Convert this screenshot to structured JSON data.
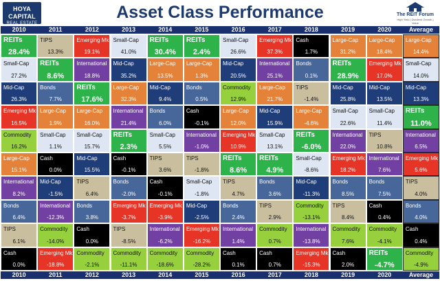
{
  "branding": {
    "left_logo_line1": "HOYA CAPITAL",
    "left_logo_line2": "REAL ESTATE",
    "right_logo_line1": "The REIT Forum",
    "right_logo_line2": "High Yield | Dividend Growth | Value"
  },
  "colors": {
    "REITs": "#2db34a",
    "Large-Cap": "#e4823a",
    "Mid-Cap": "#1f3d78",
    "Small-Cap": "#dde6f2",
    "International": "#7240a2",
    "Emerging Mk": "#e63427",
    "Bonds": "#47679a",
    "TIPS": "#c9bf9e",
    "Cash": "#000000",
    "Commodity": "#96d13d"
  },
  "chart_data": {
    "type": "table",
    "title": "Asset Class Performance",
    "columns": [
      "2010",
      "2011",
      "2012",
      "2013",
      "2014",
      "2015",
      "2016",
      "2017",
      "2018",
      "2019",
      "2020",
      "Average"
    ],
    "rows": [
      [
        [
          "REITs",
          "28.4%"
        ],
        [
          "TIPS",
          "13.3%"
        ],
        [
          "Emerging Mk",
          "19.1%"
        ],
        [
          "Small-Cap",
          "41.0%"
        ],
        [
          "REITs",
          "30.4%"
        ],
        [
          "REITs",
          "2.4%"
        ],
        [
          "Small-Cap",
          "26.6%"
        ],
        [
          "Emerging Mk",
          "37.3%"
        ],
        [
          "Cash",
          "1.7%"
        ],
        [
          "Large-Cap",
          "31.2%"
        ],
        [
          "Large-Cap",
          "18.4%"
        ],
        [
          "Large-Cap",
          "14.4%"
        ]
      ],
      [
        [
          "Small-Cap",
          "27.2%"
        ],
        [
          "REITs",
          "8.6%"
        ],
        [
          "International",
          "18.8%"
        ],
        [
          "Mid-Cap",
          "35.2%"
        ],
        [
          "Large-Cap",
          "13.5%"
        ],
        [
          "Large-Cap",
          "1.3%"
        ],
        [
          "Mid-Cap",
          "20.5%"
        ],
        [
          "International",
          "25.1%"
        ],
        [
          "Bonds",
          "0.1%"
        ],
        [
          "REITs",
          "28.9%"
        ],
        [
          "Emerging Mk",
          "17.0%"
        ],
        [
          "Small-Cap",
          "14.0%"
        ]
      ],
      [
        [
          "Mid-Cap",
          "26.3%"
        ],
        [
          "Bonds",
          "7.7%"
        ],
        [
          "REITs",
          "17.6%"
        ],
        [
          "Large-Cap",
          "32.3%"
        ],
        [
          "Mid-Cap",
          "9.4%"
        ],
        [
          "Bonds",
          "0.5%"
        ],
        [
          "Commodity",
          "12.9%"
        ],
        [
          "Large-Cap",
          "21.7%"
        ],
        [
          "TIPS",
          "-1.4%"
        ],
        [
          "Mid-Cap",
          "25.8%"
        ],
        [
          "Mid-Cap",
          "13.5%"
        ],
        [
          "Mid-Cap",
          "13.3%"
        ]
      ],
      [
        [
          "Emerging Mk",
          "16.5%"
        ],
        [
          "Large-Cap",
          "1.9%"
        ],
        [
          "Large-Cap",
          "16.0%"
        ],
        [
          "International",
          "21.4%"
        ],
        [
          "Bonds",
          "6.0%"
        ],
        [
          "Cash",
          "-0.1%"
        ],
        [
          "Large-Cap",
          "12.0%"
        ],
        [
          "Mid-Cap",
          "15.9%"
        ],
        [
          "Large-Cap",
          "-4.6%"
        ],
        [
          "Small-Cap",
          "22.6%"
        ],
        [
          "Small-Cap",
          "11.4%"
        ],
        [
          "REITs",
          "11.0%"
        ]
      ],
      [
        [
          "Commodity",
          "16.2%"
        ],
        [
          "Small-Cap",
          "1.1%"
        ],
        [
          "Small-Cap",
          "15.7%"
        ],
        [
          "REITs",
          "2.3%"
        ],
        [
          "Small-Cap",
          "5.5%"
        ],
        [
          "International",
          "-1.0%"
        ],
        [
          "Emerging Mk",
          "10.9%"
        ],
        [
          "Small-Cap",
          "13.1%"
        ],
        [
          "REITs",
          "-6.0%"
        ],
        [
          "International",
          "22.0%"
        ],
        [
          "TIPS",
          "10.8%"
        ],
        [
          "International",
          "6.5%"
        ]
      ],
      [
        [
          "Large-Cap",
          "15.1%"
        ],
        [
          "Cash",
          "0.0%"
        ],
        [
          "Mid-Cap",
          "15.5%"
        ],
        [
          "Cash",
          "-0.1%"
        ],
        [
          "TIPS",
          "3.6%"
        ],
        [
          "TIPS",
          "-1.8%"
        ],
        [
          "REITs",
          "8.6%"
        ],
        [
          "REITs",
          "4.9%"
        ],
        [
          "Small-Cap",
          "-8.6%"
        ],
        [
          "Emerging Mk",
          "18.2%"
        ],
        [
          "International",
          "7.6%"
        ],
        [
          "Emerging Mk",
          "5.6%"
        ]
      ],
      [
        [
          "International",
          "8.2%"
        ],
        [
          "Mid-Cap",
          "-1.5%"
        ],
        [
          "TIPS",
          "6.4%"
        ],
        [
          "Bonds",
          "-2.0%"
        ],
        [
          "Cash",
          "-0.1%"
        ],
        [
          "Small-Cap",
          "-1.8%"
        ],
        [
          "TIPS",
          "4.7%"
        ],
        [
          "Bonds",
          "3.6%"
        ],
        [
          "Mid-Cap",
          "-11.3%"
        ],
        [
          "Bonds",
          "8.5%"
        ],
        [
          "Bonds",
          "7.5%"
        ],
        [
          "TIPS",
          "4.0%"
        ]
      ],
      [
        [
          "Bonds",
          "6.4%"
        ],
        [
          "International",
          "-12.3%"
        ],
        [
          "Bonds",
          "3.8%"
        ],
        [
          "Emerging Mk",
          "-3.7%"
        ],
        [
          "Emerging Mk",
          "-3.9%"
        ],
        [
          "Mid-Cap",
          "-2.5%"
        ],
        [
          "Bonds",
          "2.4%"
        ],
        [
          "TIPS",
          "2.9%"
        ],
        [
          "Commodity",
          "-13.1%"
        ],
        [
          "TIPS",
          "8.4%"
        ],
        [
          "Cash",
          "0.4%"
        ],
        [
          "Bonds",
          "4.0%"
        ]
      ],
      [
        [
          "TIPS",
          "6.1%"
        ],
        [
          "Commodity",
          "-14.0%"
        ],
        [
          "Cash",
          "0.0%"
        ],
        [
          "TIPS",
          "-8.5%"
        ],
        [
          "International",
          "-6.2%"
        ],
        [
          "Emerging Mk",
          "-16.2%"
        ],
        [
          "International",
          "1.4%"
        ],
        [
          "Commodity",
          "0.7%"
        ],
        [
          "International",
          "-13.8%"
        ],
        [
          "Commodity",
          "7.6%"
        ],
        [
          "Commodity",
          "-4.1%"
        ],
        [
          "Cash",
          "0.4%"
        ]
      ],
      [
        [
          "Cash",
          "0.0%"
        ],
        [
          "Emerging Mk",
          "-18.8%"
        ],
        [
          "Commodity",
          "-2.1%"
        ],
        [
          "Commodity",
          "-11.1%"
        ],
        [
          "Commodity",
          "-18.6%"
        ],
        [
          "Commodity",
          "-28.2%"
        ],
        [
          "Cash",
          "0.1%"
        ],
        [
          "Cash",
          "0.7%"
        ],
        [
          "Emerging Mk",
          "-15.3%"
        ],
        [
          "Cash",
          "2.0%"
        ],
        [
          "REITs",
          "-4.7%"
        ],
        [
          "Commodity",
          "-4.9%"
        ]
      ]
    ]
  }
}
